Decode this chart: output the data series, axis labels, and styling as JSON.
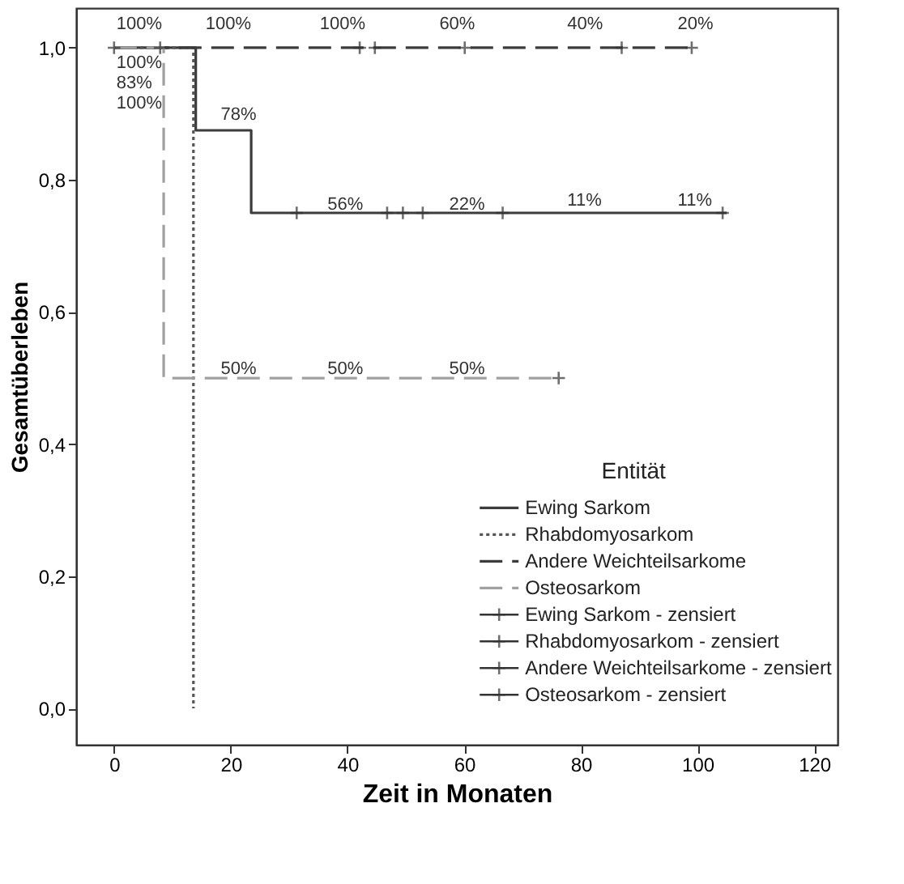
{
  "chart_data": {
    "type": "step",
    "xlabel": "Zeit in Monaten",
    "ylabel": "Gesamtüberleben",
    "legend_title": "Entität",
    "xlim": [
      -6.5,
      124
    ],
    "xticks": [
      0,
      20,
      40,
      60,
      80,
      100,
      120
    ],
    "ylim": [
      -0.055,
      1.06
    ],
    "yticks": [
      {
        "value": 0,
        "label": "0,0"
      },
      {
        "value": 0.2,
        "label": "0,2"
      },
      {
        "value": 0.4,
        "label": "0,4"
      },
      {
        "value": 0.6,
        "label": "0,6"
      },
      {
        "value": 0.8,
        "label": "0,8"
      },
      {
        "value": 1.0,
        "label": "1,0"
      }
    ],
    "grid": false,
    "legend": "bottom right",
    "series": [
      {
        "name": "Ewing Sarkom",
        "color": "#3c3c3c",
        "line_style": "solid",
        "x": [
          0,
          14,
          23.5,
          105
        ],
        "values": [
          1,
          0.875,
          0.75,
          0.75
        ]
      },
      {
        "name": "Rhabdomyosarkom",
        "color": "#555555",
        "line_style": "dotted",
        "x": [
          0,
          13.6
        ],
        "values": [
          1,
          0
        ]
      },
      {
        "name": "Andere Weichteilsarkome",
        "color": "#3c3c3c",
        "line_style": "dashed",
        "x": [
          0,
          99
        ],
        "values": [
          1,
          1
        ]
      },
      {
        "name": "Osteosarkom",
        "color": "#a0a0a0",
        "line_style": "dashed",
        "x": [
          0,
          8.5,
          76
        ],
        "values": [
          1,
          0.5,
          0.5
        ]
      },
      {
        "name": "Ewing Sarkom - zensiert",
        "type": "scatter",
        "marker": "cross",
        "color": "#333333",
        "x": [
          0,
          31.3,
          46.8,
          49.5,
          52.9,
          66.6,
          104.3
        ],
        "values": [
          1,
          0.75,
          0.75,
          0.75,
          0.75,
          0.75,
          0.75
        ]
      },
      {
        "name": "Rhabdomyosarkom - zensiert",
        "type": "scatter",
        "marker": "cross",
        "color": "#333333",
        "x": [
          7.9
        ],
        "values": [
          1
        ]
      },
      {
        "name": "Andere Weichteilsarkome - zensiert",
        "type": "scatter",
        "marker": "cross",
        "color": "#333333",
        "x": [
          42.1,
          44.7,
          60.1,
          87,
          99
        ],
        "values": [
          1,
          1,
          1,
          1,
          1
        ]
      },
      {
        "name": "Osteosarkom - zensiert",
        "type": "scatter",
        "marker": "cross",
        "color": "#333333",
        "x": [
          76.2
        ],
        "values": [
          0.5
        ]
      }
    ],
    "annotations": [
      "100%",
      "100%",
      "100%",
      "60%",
      "40%",
      "20%",
      "100%",
      "83%",
      "100%",
      "78%",
      "56%",
      "22%",
      "11%",
      "11%",
      "50%",
      "50%",
      "50%"
    ]
  }
}
